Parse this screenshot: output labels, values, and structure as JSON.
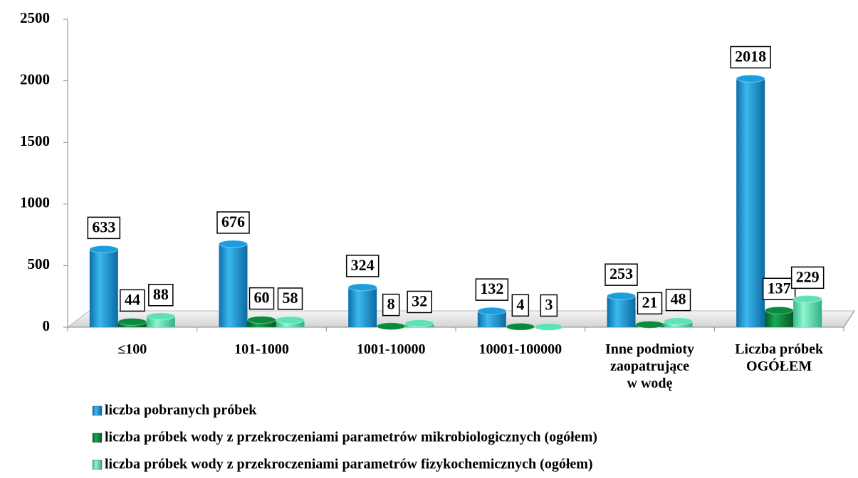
{
  "chart_data": {
    "type": "bar",
    "categories": [
      "≤100",
      "101-1000",
      "1001-10000",
      "10001-100000",
      "Inne podmioty\nzaopatrujące\nw wodę",
      "Liczba próbek\nOGÓŁEM"
    ],
    "series": [
      {
        "name": "liczba pobranych próbek",
        "color": "#1a9ee0",
        "values": [
          633,
          676,
          324,
          132,
          253,
          2018
        ]
      },
      {
        "name": "liczba próbek wody z przekroczeniami parametrów mikrobiologicznych (ogółem)",
        "color": "#0b8a3e",
        "values": [
          44,
          60,
          8,
          4,
          21,
          137
        ]
      },
      {
        "name": "liczba próbek wody z przekroczeniami parametrów fizykochemicznych (ogółem)",
        "color": "#5fe3b3",
        "values": [
          88,
          58,
          32,
          3,
          48,
          229
        ]
      }
    ],
    "ylim": [
      0,
      2500
    ],
    "yticks": [
      0,
      500,
      1000,
      1500,
      2000,
      2500
    ],
    "legend": "bottom"
  }
}
